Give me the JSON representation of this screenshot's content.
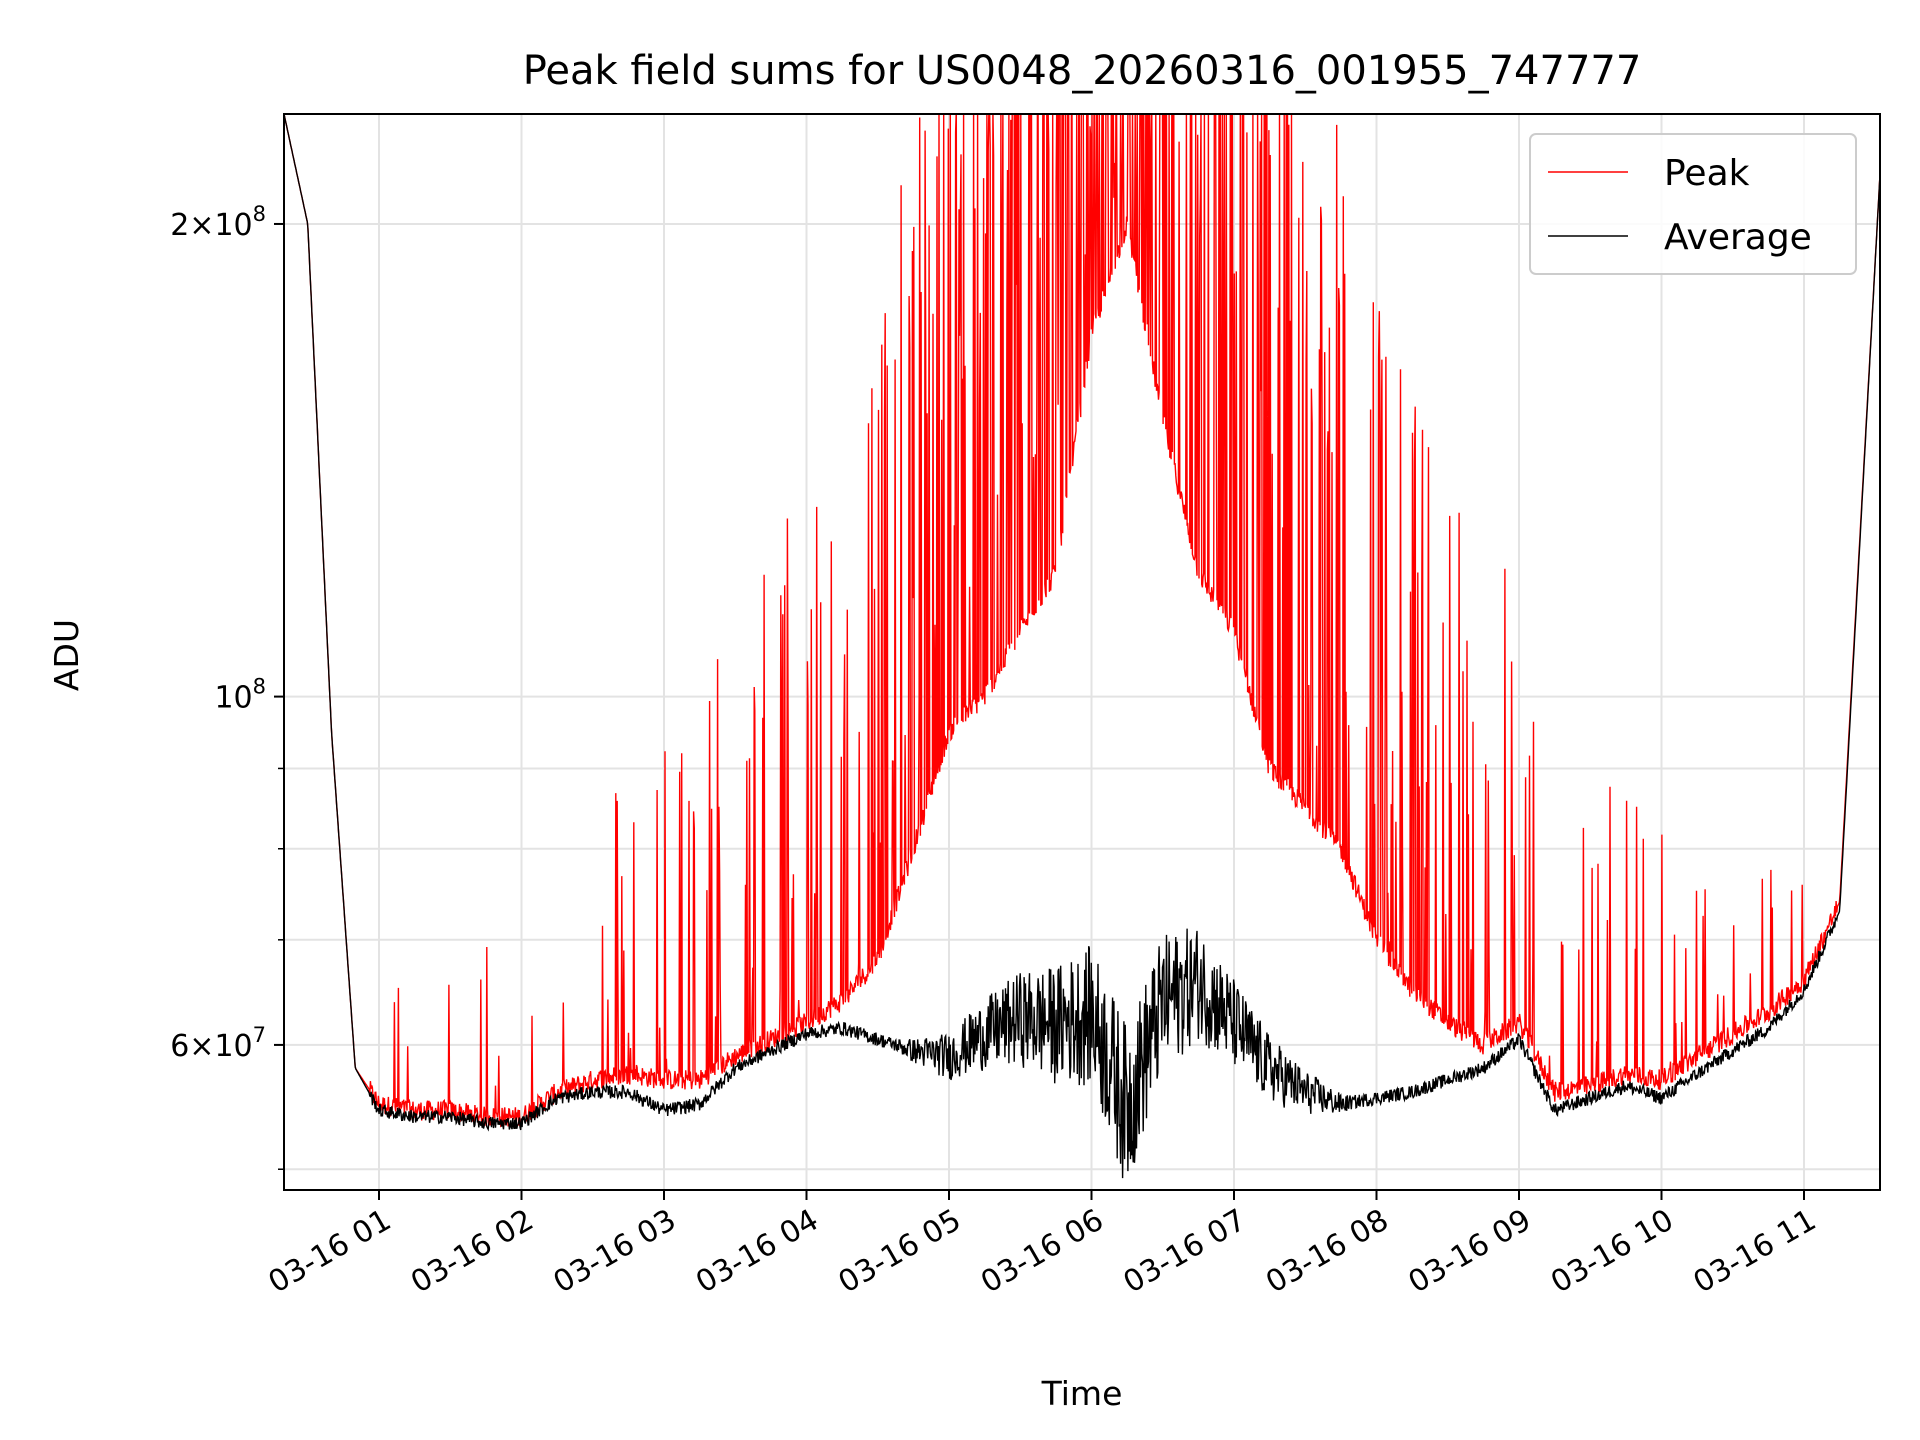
{
  "chart_data": {
    "type": "line",
    "title": "Peak field sums for US0048_20260316_001955_747777",
    "xlabel": "Time",
    "ylabel": "ADU",
    "y_scale": "log",
    "ylim": [
      48500000,
      235000000
    ],
    "xlim": [
      "2026-03-16 00:20",
      "2026-03-16 11:32"
    ],
    "grid": true,
    "legend_position": "top-right",
    "x_ticks": [
      {
        "at": "2026-03-16 01:00",
        "label": "03-16 01"
      },
      {
        "at": "2026-03-16 02:00",
        "label": "03-16 02"
      },
      {
        "at": "2026-03-16 03:00",
        "label": "03-16 03"
      },
      {
        "at": "2026-03-16 04:00",
        "label": "03-16 04"
      },
      {
        "at": "2026-03-16 05:00",
        "label": "03-16 05"
      },
      {
        "at": "2026-03-16 06:00",
        "label": "03-16 06"
      },
      {
        "at": "2026-03-16 07:00",
        "label": "03-16 07"
      },
      {
        "at": "2026-03-16 08:00",
        "label": "03-16 08"
      },
      {
        "at": "2026-03-16 09:00",
        "label": "03-16 09"
      },
      {
        "at": "2026-03-16 10:00",
        "label": "03-16 10"
      },
      {
        "at": "2026-03-16 11:00",
        "label": "03-16 11"
      }
    ],
    "y_major_ticks": [
      {
        "value": 100000000,
        "mantissa": "",
        "exponent": "8",
        "base": "10"
      },
      {
        "value": 200000000,
        "mantissa": "2",
        "exponent": "8",
        "base": "10"
      },
      {
        "value": 60000000,
        "mantissa": "6",
        "exponent": "7",
        "base": "10"
      }
    ],
    "y_minor_ticks": [
      50000000,
      70000000,
      80000000,
      90000000
    ],
    "series": [
      {
        "name": "Peak",
        "color": "#ff0000",
        "x": [
          "2026-03-16 00:20",
          "2026-03-16 00:30",
          "2026-03-16 00:40",
          "2026-03-16 00:50",
          "2026-03-16 01:00",
          "2026-03-16 01:15",
          "2026-03-16 01:30",
          "2026-03-16 01:45",
          "2026-03-16 02:00",
          "2026-03-16 02:15",
          "2026-03-16 02:30",
          "2026-03-16 02:45",
          "2026-03-16 03:00",
          "2026-03-16 03:15",
          "2026-03-16 03:30",
          "2026-03-16 03:45",
          "2026-03-16 04:00",
          "2026-03-16 04:15",
          "2026-03-16 04:30",
          "2026-03-16 04:45",
          "2026-03-16 05:00",
          "2026-03-16 05:15",
          "2026-03-16 05:30",
          "2026-03-16 05:45",
          "2026-03-16 06:00",
          "2026-03-16 06:15",
          "2026-03-16 06:30",
          "2026-03-16 06:45",
          "2026-03-16 07:00",
          "2026-03-16 07:15",
          "2026-03-16 07:30",
          "2026-03-16 07:45",
          "2026-03-16 08:00",
          "2026-03-16 08:15",
          "2026-03-16 08:30",
          "2026-03-16 08:45",
          "2026-03-16 09:00",
          "2026-03-16 09:15",
          "2026-03-16 09:30",
          "2026-03-16 09:45",
          "2026-03-16 10:00",
          "2026-03-16 10:15",
          "2026-03-16 10:30",
          "2026-03-16 10:45",
          "2026-03-16 11:00",
          "2026-03-16 11:15",
          "2026-03-16 11:32"
        ],
        "values": [
          235000000,
          200000000,
          95000000,
          58000000,
          55000000,
          54500000,
          54500000,
          54000000,
          54000000,
          56000000,
          57000000,
          57500000,
          57000000,
          57000000,
          59000000,
          60500000,
          62000000,
          64000000,
          68000000,
          80000000,
          95000000,
          100000000,
          110000000,
          120000000,
          170000000,
          200000000,
          150000000,
          120000000,
          110000000,
          90000000,
          85000000,
          80000000,
          70000000,
          65000000,
          62000000,
          60000000,
          62000000,
          56000000,
          56500000,
          57500000,
          57000000,
          59000000,
          61000000,
          63000000,
          66000000,
          74000000,
          215000000
        ]
      },
      {
        "name": "Average",
        "color": "#000000",
        "x": [
          "2026-03-16 00:20",
          "2026-03-16 00:30",
          "2026-03-16 00:40",
          "2026-03-16 00:50",
          "2026-03-16 01:00",
          "2026-03-16 01:15",
          "2026-03-16 01:30",
          "2026-03-16 01:45",
          "2026-03-16 02:00",
          "2026-03-16 02:15",
          "2026-03-16 02:30",
          "2026-03-16 02:45",
          "2026-03-16 03:00",
          "2026-03-16 03:15",
          "2026-03-16 03:30",
          "2026-03-16 03:45",
          "2026-03-16 04:00",
          "2026-03-16 04:15",
          "2026-03-16 04:30",
          "2026-03-16 04:45",
          "2026-03-16 05:00",
          "2026-03-16 05:15",
          "2026-03-16 05:30",
          "2026-03-16 05:45",
          "2026-03-16 06:00",
          "2026-03-16 06:15",
          "2026-03-16 06:30",
          "2026-03-16 06:45",
          "2026-03-16 07:00",
          "2026-03-16 07:15",
          "2026-03-16 07:30",
          "2026-03-16 07:45",
          "2026-03-16 08:00",
          "2026-03-16 08:15",
          "2026-03-16 08:30",
          "2026-03-16 08:45",
          "2026-03-16 09:00",
          "2026-03-16 09:15",
          "2026-03-16 09:30",
          "2026-03-16 09:45",
          "2026-03-16 10:00",
          "2026-03-16 10:15",
          "2026-03-16 10:30",
          "2026-03-16 10:45",
          "2026-03-16 11:00",
          "2026-03-16 11:15",
          "2026-03-16 11:32"
        ],
        "values": [
          235000000,
          200000000,
          95000000,
          58000000,
          54500000,
          54000000,
          54000000,
          53500000,
          53500000,
          55500000,
          56000000,
          56000000,
          54500000,
          55000000,
          58000000,
          59500000,
          61000000,
          61500000,
          60500000,
          59500000,
          59000000,
          61000000,
          62500000,
          62000000,
          63000000,
          55000000,
          64000000,
          66000000,
          62000000,
          58000000,
          56000000,
          55000000,
          55500000,
          56000000,
          57000000,
          58000000,
          60500000,
          54500000,
          55500000,
          56500000,
          55500000,
          57500000,
          59500000,
          61500000,
          65000000,
          73000000,
          215000000
        ]
      }
    ]
  }
}
